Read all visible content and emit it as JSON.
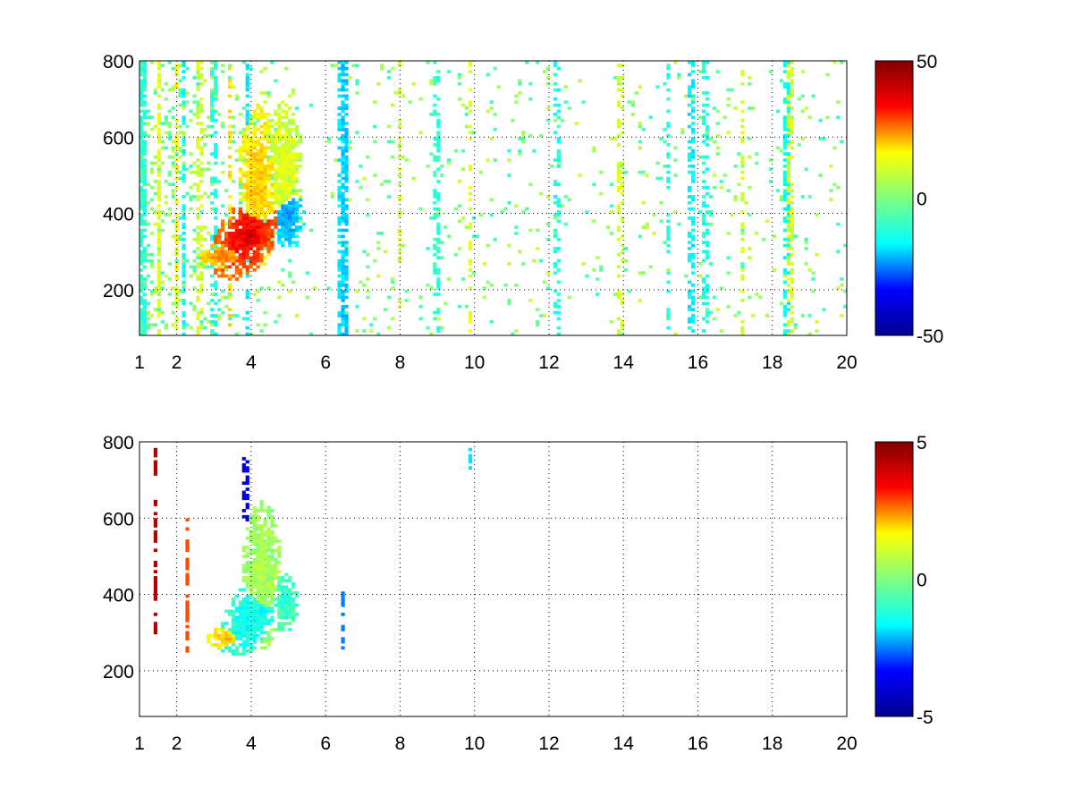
{
  "chart_data": [
    {
      "type": "heatmap",
      "panel": "top",
      "title": "",
      "xlabel": "",
      "ylabel": "",
      "xlim": [
        1,
        20
      ],
      "ylim": [
        80,
        800
      ],
      "x_ticks": [
        1,
        2,
        4,
        6,
        8,
        10,
        12,
        14,
        16,
        18,
        20
      ],
      "x_tick_labels": [
        "1",
        "2",
        "4",
        "6",
        "8",
        "10",
        "12",
        "14",
        "16",
        "18",
        "20"
      ],
      "y_ticks": [
        200,
        400,
        600,
        800
      ],
      "y_tick_labels": [
        "200",
        "400",
        "600",
        "800"
      ],
      "grid": true,
      "colormap": "jet",
      "colorbar": {
        "range": [
          -50,
          50
        ],
        "ticks": [
          -50,
          0,
          50
        ],
        "tick_labels": [
          "-50",
          "0",
          "50"
        ],
        "stops": [
          "#00008f",
          "#0000ff",
          "#00ffff",
          "#80ff80",
          "#ffff00",
          "#ff0000",
          "#800000"
        ]
      },
      "features": [
        {
          "kind": "blob",
          "x": 3.9,
          "y": 340,
          "sx": 0.45,
          "sy": 60,
          "tilt": 130,
          "value": 40
        },
        {
          "kind": "blob",
          "x": 4.2,
          "y": 470,
          "sx": 0.3,
          "sy": 110,
          "tilt": 0,
          "value": 18
        },
        {
          "kind": "blob",
          "x": 3.3,
          "y": 290,
          "sx": 0.35,
          "sy": 20,
          "tilt": 0,
          "value": 25
        },
        {
          "kind": "blob",
          "x": 5.0,
          "y": 390,
          "sx": 0.22,
          "sy": 45,
          "tilt": 0,
          "value": -22
        },
        {
          "kind": "blob",
          "x": 4.9,
          "y": 520,
          "sx": 0.25,
          "sy": 90,
          "tilt": 0,
          "value": 10
        }
      ],
      "noise_columns": [
        {
          "x": 1.1,
          "value": -8,
          "density": 0.8
        },
        {
          "x": 1.5,
          "value": 10,
          "density": 0.7
        },
        {
          "x": 2.0,
          "value": 12,
          "density": 0.5
        },
        {
          "x": 2.2,
          "value": -12,
          "density": 0.5
        },
        {
          "x": 2.6,
          "value": 8,
          "density": 0.5
        },
        {
          "x": 3.0,
          "value": -10,
          "density": 0.45
        },
        {
          "x": 3.4,
          "value": 15,
          "density": 0.45
        },
        {
          "x": 3.9,
          "value": -14,
          "density": 0.5
        },
        {
          "x": 6.4,
          "value": -15,
          "density": 0.55
        },
        {
          "x": 6.5,
          "value": -18,
          "density": 0.6
        },
        {
          "x": 8.0,
          "value": 8,
          "density": 0.3
        },
        {
          "x": 9.0,
          "value": -8,
          "density": 0.35
        },
        {
          "x": 9.9,
          "value": 10,
          "density": 0.3
        },
        {
          "x": 12.2,
          "value": -10,
          "density": 0.3
        },
        {
          "x": 13.9,
          "value": 8,
          "density": 0.3
        },
        {
          "x": 15.2,
          "value": -8,
          "density": 0.35
        },
        {
          "x": 15.8,
          "value": -14,
          "density": 0.5
        },
        {
          "x": 16.2,
          "value": -10,
          "density": 0.4
        },
        {
          "x": 17.2,
          "value": 8,
          "density": 0.35
        },
        {
          "x": 18.4,
          "value": -12,
          "density": 0.5
        },
        {
          "x": 18.5,
          "value": 8,
          "density": 0.5
        }
      ],
      "background_noise": {
        "amplitude": 8
      }
    },
    {
      "type": "heatmap",
      "panel": "bottom",
      "title": "",
      "xlabel": "",
      "ylabel": "",
      "xlim": [
        1,
        20
      ],
      "ylim": [
        80,
        800
      ],
      "x_ticks": [
        1,
        2,
        4,
        6,
        8,
        10,
        12,
        14,
        16,
        18,
        20
      ],
      "x_tick_labels": [
        "1",
        "2",
        "4",
        "6",
        "8",
        "10",
        "12",
        "14",
        "16",
        "18",
        "20"
      ],
      "y_ticks": [
        200,
        400,
        600,
        800
      ],
      "y_tick_labels": [
        "200",
        "400",
        "600",
        "800"
      ],
      "grid": true,
      "colormap": "jet",
      "colorbar": {
        "range": [
          -5,
          5
        ],
        "ticks": [
          -5,
          0,
          5
        ],
        "tick_labels": [
          "-5",
          "0",
          "5"
        ],
        "stops": [
          "#00008f",
          "#0000ff",
          "#00ffff",
          "#80ff80",
          "#ffff00",
          "#ff0000",
          "#800000"
        ]
      },
      "features": [
        {
          "kind": "blob",
          "x": 4.0,
          "y": 340,
          "sx": 0.4,
          "sy": 55,
          "tilt": 130,
          "value": -1.2
        },
        {
          "kind": "blob",
          "x": 4.3,
          "y": 450,
          "sx": 0.28,
          "sy": 100,
          "tilt": 0,
          "value": 0.4
        },
        {
          "kind": "blob",
          "x": 3.3,
          "y": 285,
          "sx": 0.25,
          "sy": 14,
          "tilt": 0,
          "value": 1.8
        },
        {
          "kind": "blob",
          "x": 4.9,
          "y": 380,
          "sx": 0.2,
          "sy": 40,
          "tilt": 0,
          "value": -0.8
        }
      ],
      "sparse_columns": [
        {
          "x": 1.45,
          "y_range": [
            300,
            790
          ],
          "value": 4.5
        },
        {
          "x": 2.25,
          "y_range": [
            250,
            600
          ],
          "value": 3.0
        },
        {
          "x": 3.85,
          "y_range": [
            590,
            760
          ],
          "value": -4.0
        },
        {
          "x": 6.45,
          "y_range": [
            260,
            410
          ],
          "value": -2.5
        },
        {
          "x": 9.9,
          "y_range": [
            730,
            800
          ],
          "value": -1.5
        }
      ]
    }
  ]
}
